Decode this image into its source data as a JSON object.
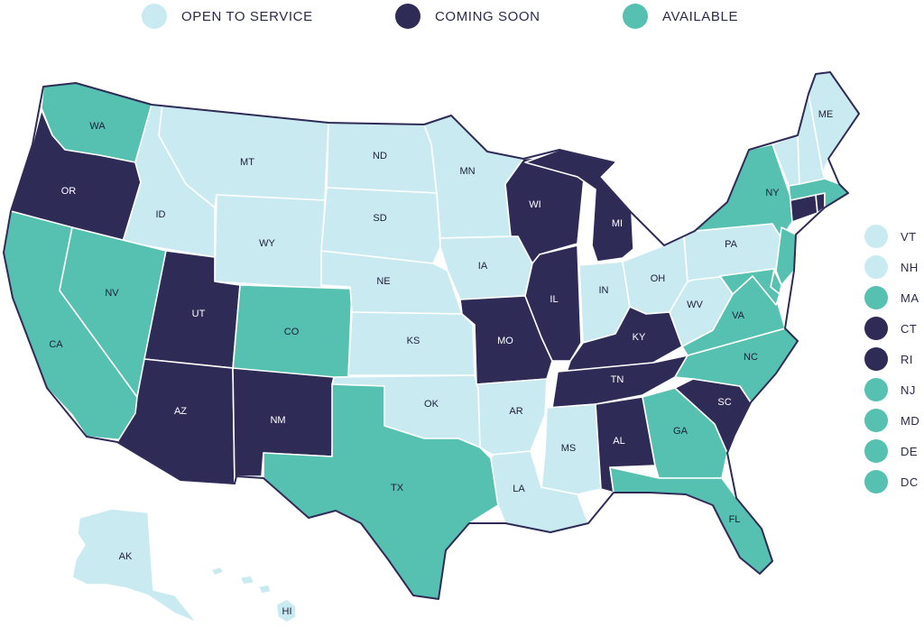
{
  "colors": {
    "open": "#c9eaf1",
    "soon": "#2e2b57",
    "available": "#56c0b1"
  },
  "legend": [
    {
      "key": "open",
      "label": "OPEN TO SERVICE"
    },
    {
      "key": "soon",
      "label": "COMING SOON"
    },
    {
      "key": "available",
      "label": "AVAILABLE"
    }
  ],
  "states": {
    "WA": "available",
    "OR": "soon",
    "CA": "available",
    "ID": "open",
    "NV": "available",
    "MT": "open",
    "WY": "open",
    "UT": "soon",
    "AZ": "soon",
    "CO": "available",
    "NM": "soon",
    "ND": "open",
    "SD": "open",
    "NE": "open",
    "KS": "open",
    "OK": "open",
    "TX": "available",
    "MN": "open",
    "IA": "open",
    "MO": "soon",
    "AR": "open",
    "LA": "open",
    "WI": "soon",
    "IL": "soon",
    "MI": "soon",
    "IN": "open",
    "OH": "open",
    "KY": "soon",
    "TN": "soon",
    "MS": "open",
    "AL": "soon",
    "GA": "available",
    "FL": "available",
    "SC": "soon",
    "NC": "available",
    "VA": "available",
    "WV": "open",
    "PA": "open",
    "NY": "available",
    "ME": "open",
    "VT": "open",
    "NH": "open",
    "MA": "available",
    "CT": "soon",
    "RI": "soon",
    "NJ": "available",
    "MD": "available",
    "DE": "available",
    "AK": "open",
    "HI": "open"
  },
  "side_legend": [
    {
      "abbr": "VT",
      "status": "open"
    },
    {
      "abbr": "NH",
      "status": "open"
    },
    {
      "abbr": "MA",
      "status": "available"
    },
    {
      "abbr": "CT",
      "status": "soon"
    },
    {
      "abbr": "RI",
      "status": "soon"
    },
    {
      "abbr": "NJ",
      "status": "available"
    },
    {
      "abbr": "MD",
      "status": "available"
    },
    {
      "abbr": "DE",
      "status": "available"
    },
    {
      "abbr": "DC",
      "status": "available"
    }
  ]
}
